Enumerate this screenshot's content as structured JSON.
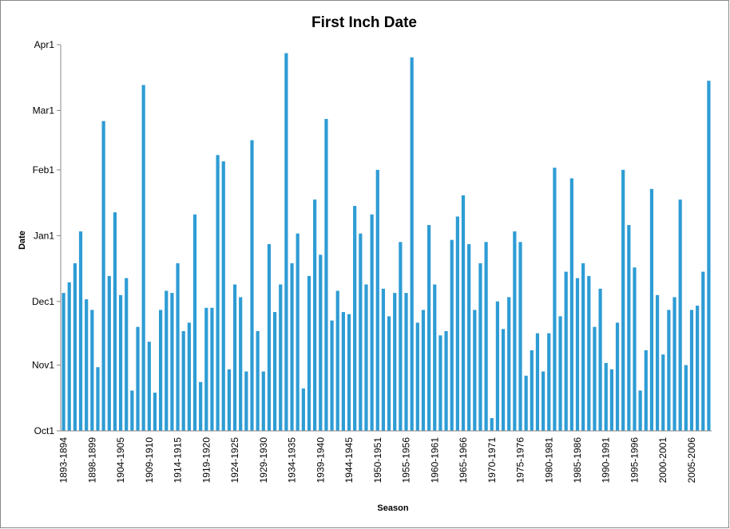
{
  "chart_data": {
    "type": "bar",
    "title": "First Inch Date",
    "x_label": "Season",
    "y_label": "Date",
    "color": "#2e9cd4",
    "categories": [
      "1893-1894",
      null,
      null,
      null,
      null,
      "1898-1899",
      null,
      null,
      null,
      null,
      "1904-1905",
      null,
      null,
      null,
      null,
      "1909-1910",
      null,
      null,
      null,
      null,
      "1914-1915",
      null,
      null,
      null,
      null,
      "1919-1920",
      null,
      null,
      null,
      null,
      "1924-1925",
      null,
      null,
      null,
      null,
      "1929-1930",
      null,
      null,
      null,
      null,
      "1934-1935",
      null,
      null,
      null,
      null,
      "1939-1940",
      null,
      null,
      null,
      null,
      "1944-1945",
      null,
      null,
      null,
      null,
      "1950-1951",
      null,
      null,
      null,
      null,
      "1955-1956",
      null,
      null,
      null,
      null,
      "1960-1961",
      null,
      null,
      null,
      null,
      "1965-1966",
      null,
      null,
      null,
      null,
      "1970-1971",
      null,
      null,
      null,
      null,
      "1975-1976",
      null,
      null,
      null,
      null,
      "1980-1981",
      null,
      null,
      null,
      null,
      "1985-1986",
      null,
      null,
      null,
      null,
      "1990-1991",
      null,
      null,
      null,
      null,
      "1995-1996",
      null,
      null,
      null,
      null,
      "2000-2001",
      null,
      null,
      null,
      null,
      "2005-2006",
      null,
      null,
      null
    ],
    "values": [
      65,
      70,
      79,
      94,
      62,
      57,
      30,
      146,
      73,
      103,
      64,
      72,
      19,
      49,
      163,
      42,
      18,
      57,
      66,
      65,
      79,
      47,
      51,
      102,
      23,
      58,
      58,
      130,
      127,
      29,
      69,
      63,
      28,
      137,
      47,
      28,
      88,
      56,
      69,
      178,
      79,
      93,
      20,
      73,
      109,
      83,
      147,
      52,
      66,
      56,
      55,
      106,
      93,
      69,
      102,
      123,
      67,
      54,
      65,
      89,
      65,
      176,
      51,
      57,
      97,
      69,
      45,
      47,
      90,
      101,
      111,
      88,
      57,
      79,
      89,
      6,
      61,
      48,
      63,
      94,
      89,
      26,
      38,
      46,
      28,
      46,
      124,
      54,
      75,
      119,
      72,
      79,
      73,
      49,
      67,
      32,
      29,
      51,
      123,
      97,
      77,
      19,
      38,
      114,
      64,
      36,
      57,
      63,
      109,
      31,
      57,
      59,
      75,
      165
    ],
    "ylim": [
      0,
      182
    ],
    "yticks": [
      {
        "value": 0,
        "label": "Oct1"
      },
      {
        "value": 31,
        "label": "Nov1"
      },
      {
        "value": 61,
        "label": "Dec1"
      },
      {
        "value": 92,
        "label": "Jan1"
      },
      {
        "value": 123,
        "label": "Feb1"
      },
      {
        "value": 151,
        "label": "Mar1"
      },
      {
        "value": 182,
        "label": "Apr1"
      }
    ]
  }
}
